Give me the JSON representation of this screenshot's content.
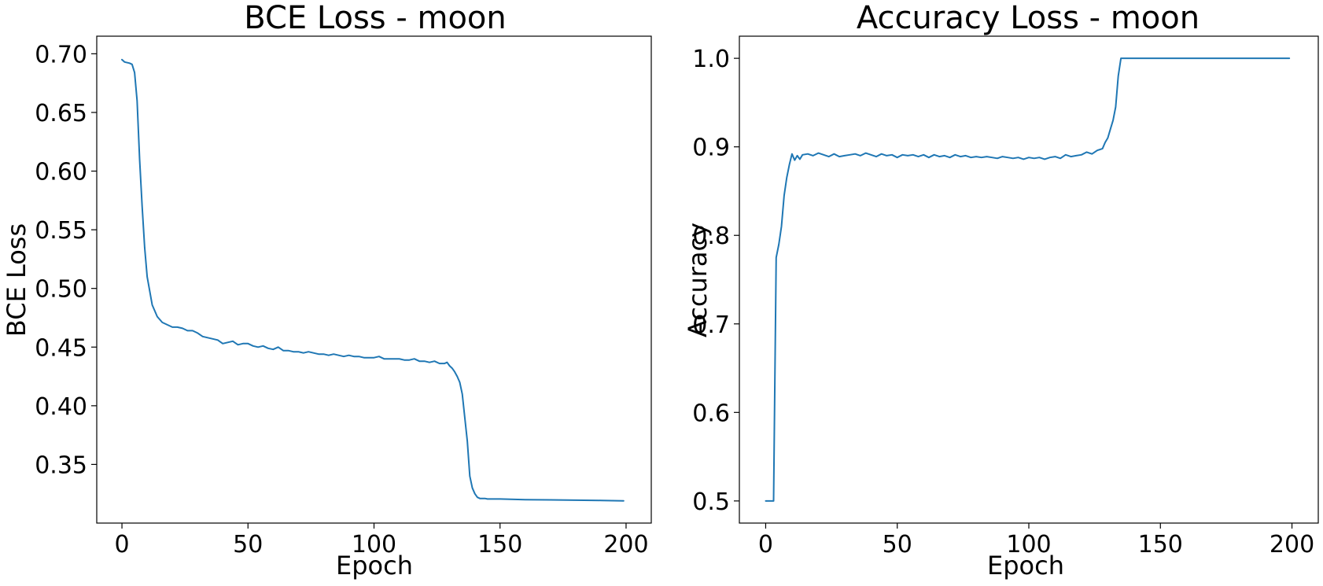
{
  "charts": [
    {
      "title": "BCE Loss - moon",
      "xlabel": "Epoch",
      "ylabel": "BCE Loss",
      "xticks": [
        "0",
        "50",
        "100",
        "150",
        "200"
      ],
      "yticks": [
        "0.35",
        "0.40",
        "0.45",
        "0.50",
        "0.55",
        "0.60",
        "0.65",
        "0.70"
      ]
    },
    {
      "title": "Accuracy Loss - moon",
      "xlabel": "Epoch",
      "ylabel": "Accuracy",
      "xticks": [
        "0",
        "50",
        "100",
        "150",
        "200"
      ],
      "yticks": [
        "0.5",
        "0.6",
        "0.7",
        "0.8",
        "0.9",
        "1.0"
      ]
    }
  ],
  "colors": {
    "line": "#1f77b4",
    "axes": "#000000",
    "background": "#ffffff"
  },
  "chart_data": [
    {
      "type": "line",
      "title": "BCE Loss - moon",
      "xlabel": "Epoch",
      "ylabel": "BCE Loss",
      "xlim": [
        -10,
        210
      ],
      "ylim": [
        0.3,
        0.715
      ],
      "grid": false,
      "legend": "none",
      "series": [
        {
          "x": [
            0,
            1,
            3,
            4,
            5,
            6,
            7,
            8,
            9,
            10,
            12,
            14,
            16,
            18,
            20,
            22,
            24,
            26,
            28,
            30,
            32,
            34,
            36,
            38,
            40,
            42,
            44,
            46,
            48,
            50,
            52,
            54,
            56,
            58,
            60,
            62,
            64,
            66,
            68,
            70,
            72,
            74,
            76,
            78,
            80,
            82,
            84,
            86,
            88,
            90,
            92,
            94,
            96,
            98,
            100,
            102,
            104,
            106,
            108,
            110,
            112,
            114,
            116,
            118,
            120,
            122,
            124,
            126,
            128,
            129,
            130,
            131,
            132,
            133,
            134,
            135,
            136,
            137,
            138,
            139,
            140,
            141,
            142,
            143,
            144,
            145,
            150,
            160,
            170,
            180,
            190,
            199
          ],
          "y": [
            0.695,
            0.693,
            0.692,
            0.691,
            0.684,
            0.66,
            0.61,
            0.57,
            0.535,
            0.51,
            0.486,
            0.476,
            0.471,
            0.469,
            0.467,
            0.467,
            0.466,
            0.464,
            0.464,
            0.462,
            0.459,
            0.458,
            0.457,
            0.456,
            0.453,
            0.454,
            0.455,
            0.452,
            0.453,
            0.453,
            0.451,
            0.45,
            0.451,
            0.449,
            0.448,
            0.45,
            0.447,
            0.447,
            0.446,
            0.446,
            0.445,
            0.446,
            0.445,
            0.444,
            0.444,
            0.443,
            0.444,
            0.443,
            0.442,
            0.443,
            0.442,
            0.442,
            0.441,
            0.441,
            0.441,
            0.442,
            0.44,
            0.44,
            0.44,
            0.44,
            0.439,
            0.439,
            0.44,
            0.438,
            0.438,
            0.437,
            0.438,
            0.436,
            0.436,
            0.437,
            0.434,
            0.432,
            0.429,
            0.425,
            0.42,
            0.41,
            0.39,
            0.37,
            0.34,
            0.33,
            0.325,
            0.322,
            0.321,
            0.321,
            0.321,
            0.3205,
            0.3205,
            0.32,
            0.3198,
            0.3195,
            0.3193,
            0.319
          ]
        }
      ]
    },
    {
      "type": "line",
      "title": "Accuracy Loss - moon",
      "xlabel": "Epoch",
      "ylabel": "Accuracy",
      "xlim": [
        -10,
        210
      ],
      "ylim": [
        0.475,
        1.025
      ],
      "grid": false,
      "legend": "none",
      "series": [
        {
          "x": [
            0,
            1,
            2,
            3,
            4,
            5,
            6,
            7,
            8,
            9,
            10,
            11,
            12,
            13,
            14,
            16,
            18,
            20,
            22,
            24,
            26,
            28,
            30,
            32,
            34,
            36,
            38,
            40,
            42,
            44,
            46,
            48,
            50,
            52,
            54,
            56,
            58,
            60,
            62,
            64,
            66,
            68,
            70,
            72,
            74,
            76,
            78,
            80,
            82,
            84,
            86,
            88,
            90,
            92,
            94,
            96,
            98,
            100,
            102,
            104,
            106,
            108,
            110,
            112,
            114,
            116,
            118,
            120,
            122,
            124,
            126,
            128,
            129,
            130,
            131,
            132,
            133,
            134,
            135,
            136,
            137,
            138,
            140,
            150,
            160,
            170,
            180,
            190,
            199
          ],
          "y": [
            0.5,
            0.5,
            0.5,
            0.5,
            0.775,
            0.79,
            0.81,
            0.845,
            0.865,
            0.88,
            0.892,
            0.885,
            0.89,
            0.886,
            0.891,
            0.892,
            0.89,
            0.893,
            0.891,
            0.889,
            0.892,
            0.889,
            0.89,
            0.891,
            0.892,
            0.89,
            0.893,
            0.891,
            0.889,
            0.892,
            0.89,
            0.891,
            0.888,
            0.891,
            0.89,
            0.891,
            0.889,
            0.891,
            0.888,
            0.891,
            0.889,
            0.89,
            0.888,
            0.891,
            0.889,
            0.89,
            0.888,
            0.889,
            0.888,
            0.889,
            0.888,
            0.887,
            0.889,
            0.888,
            0.887,
            0.888,
            0.886,
            0.888,
            0.887,
            0.888,
            0.886,
            0.888,
            0.889,
            0.887,
            0.891,
            0.889,
            0.89,
            0.891,
            0.894,
            0.892,
            0.896,
            0.898,
            0.905,
            0.91,
            0.92,
            0.93,
            0.945,
            0.98,
            1.0,
            1.0,
            1.0,
            1.0,
            1.0,
            1.0,
            1.0,
            1.0,
            1.0,
            1.0,
            1.0
          ]
        }
      ]
    }
  ]
}
